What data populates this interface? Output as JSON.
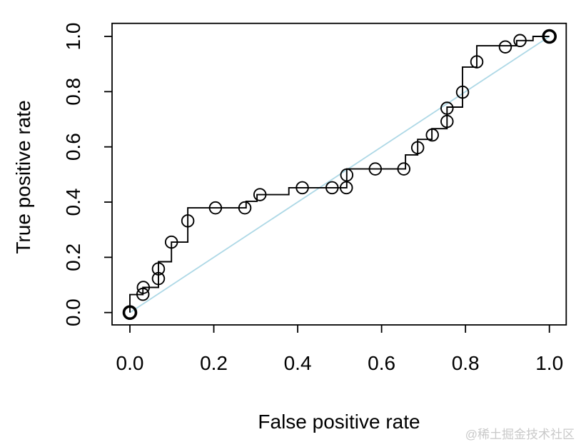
{
  "chart_data": {
    "type": "line",
    "title": "",
    "xlabel": "False positive rate",
    "ylabel": "True positive rate",
    "xlim": [
      0,
      1
    ],
    "ylim": [
      0,
      1
    ],
    "grid": false,
    "legend_position": "none",
    "x_tick_labels": [
      "0.0",
      "0.2",
      "0.4",
      "0.6",
      "0.8",
      "1.0"
    ],
    "y_tick_labels": [
      "0.0",
      "0.2",
      "0.4",
      "0.6",
      "0.8",
      "1.0"
    ],
    "x_tick_values": [
      0,
      0.2,
      0.4,
      0.6,
      0.8,
      1.0
    ],
    "y_tick_values": [
      0,
      0.2,
      0.4,
      0.6,
      0.8,
      1.0
    ],
    "series": [
      {
        "name": "roc-step-curve",
        "color": "#000000",
        "points": [
          [
            0,
            0
          ],
          [
            0,
            0.065
          ],
          [
            0.031,
            0.065
          ],
          [
            0.031,
            0.091
          ],
          [
            0.068,
            0.091
          ],
          [
            0.068,
            0.184
          ],
          [
            0.099,
            0.184
          ],
          [
            0.099,
            0.255
          ],
          [
            0.138,
            0.255
          ],
          [
            0.138,
            0.379
          ],
          [
            0.277,
            0.379
          ],
          [
            0.277,
            0.403
          ],
          [
            0.303,
            0.403
          ],
          [
            0.303,
            0.427
          ],
          [
            0.379,
            0.427
          ],
          [
            0.379,
            0.452
          ],
          [
            0.517,
            0.452
          ],
          [
            0.517,
            0.52
          ],
          [
            0.657,
            0.52
          ],
          [
            0.657,
            0.571
          ],
          [
            0.686,
            0.571
          ],
          [
            0.686,
            0.627
          ],
          [
            0.72,
            0.627
          ],
          [
            0.72,
            0.666
          ],
          [
            0.756,
            0.666
          ],
          [
            0.756,
            0.744
          ],
          [
            0.793,
            0.744
          ],
          [
            0.793,
            0.889
          ],
          [
            0.827,
            0.889
          ],
          [
            0.827,
            0.966
          ],
          [
            0.922,
            0.966
          ],
          [
            0.922,
            0.985
          ],
          [
            0.961,
            0.985
          ],
          [
            0.961,
            1
          ],
          [
            1,
            1
          ]
        ]
      },
      {
        "name": "chance-diagonal",
        "color": "#add8e6",
        "points": [
          [
            0,
            0
          ],
          [
            1,
            1
          ]
        ]
      }
    ],
    "markers": {
      "shape": "open-circle",
      "color": "#000000",
      "points": [
        [
          0.031,
          0.066
        ],
        [
          0.032,
          0.091
        ],
        [
          0.068,
          0.123
        ],
        [
          0.068,
          0.158
        ],
        [
          0.099,
          0.255
        ],
        [
          0.138,
          0.332
        ],
        [
          0.204,
          0.379
        ],
        [
          0.274,
          0.379
        ],
        [
          0.31,
          0.427
        ],
        [
          0.411,
          0.452
        ],
        [
          0.482,
          0.452
        ],
        [
          0.516,
          0.452
        ],
        [
          0.517,
          0.498
        ],
        [
          0.585,
          0.52
        ],
        [
          0.653,
          0.52
        ],
        [
          0.686,
          0.597
        ],
        [
          0.721,
          0.643
        ],
        [
          0.756,
          0.692
        ],
        [
          0.756,
          0.74
        ],
        [
          0.793,
          0.798
        ],
        [
          0.827,
          0.908
        ],
        [
          0.895,
          0.962
        ],
        [
          0.93,
          0.985
        ]
      ],
      "bold_points": [
        [
          0,
          0
        ],
        [
          1,
          1
        ]
      ]
    }
  },
  "watermark": {
    "text": "@稀土掘金技术社区",
    "color": "#c9c9c9"
  },
  "colors": {
    "axis": "#000000",
    "background": "#ffffff"
  }
}
